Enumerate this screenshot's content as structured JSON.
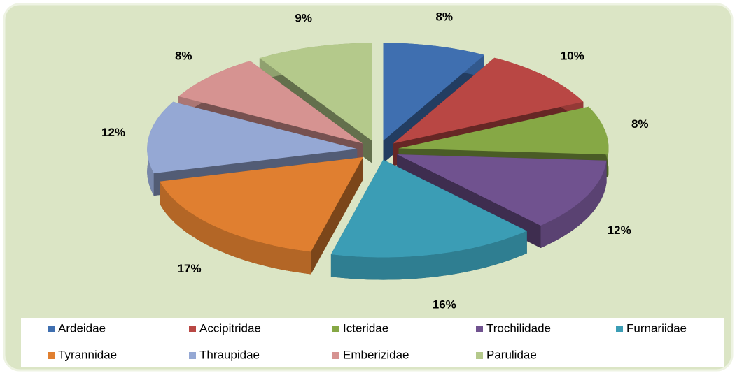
{
  "chart_data": {
    "type": "pie",
    "categories": [
      "Ardeidae",
      "Accipitridae",
      "Icteridae",
      "Trochilidade",
      "Furnariidae",
      "Tyrannidae",
      "Thraupidae",
      "Emberizidae",
      "Parulidae"
    ],
    "values": [
      8,
      10,
      8,
      12,
      16,
      17,
      12,
      8,
      9
    ],
    "value_labels": [
      "8%",
      "10%",
      "8%",
      "12%",
      "16%",
      "17%",
      "12%",
      "8%",
      "9%"
    ],
    "colors": [
      "#3f6fb0",
      "#b94744",
      "#86a845",
      "#70528f",
      "#3b9db5",
      "#e07f30",
      "#95a8d4",
      "#d69391",
      "#b4c98b"
    ],
    "legend": "bottom"
  }
}
